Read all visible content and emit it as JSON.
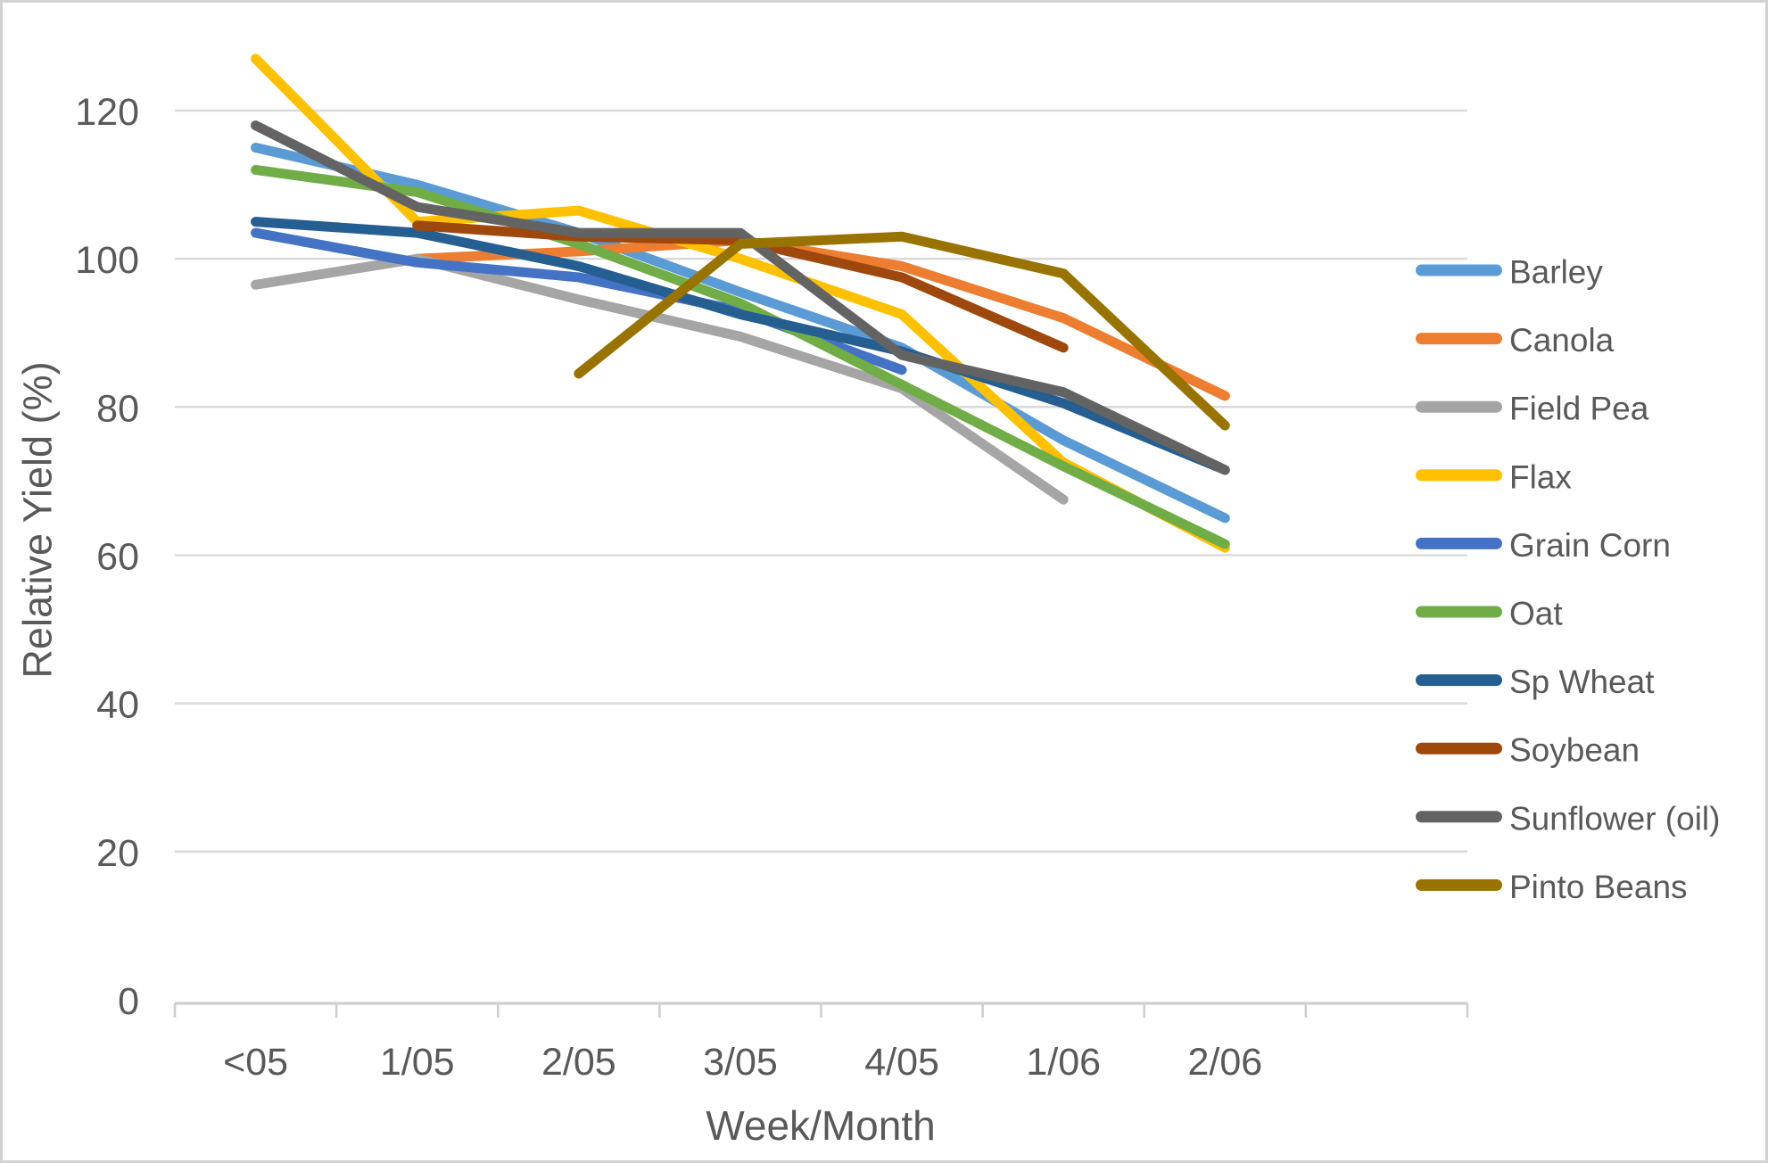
{
  "chart_data": {
    "type": "line",
    "title": "",
    "xlabel": "Week/Month",
    "ylabel": "Relative Yield (%)",
    "categories": [
      "<05",
      "1/05",
      "2/05",
      "3/05",
      "4/05",
      "1/06",
      "2/06"
    ],
    "series": [
      {
        "name": "Barley",
        "color": "#5B9BD5",
        "values": [
          115,
          110,
          103.5,
          95.5,
          88,
          75.5,
          65
        ]
      },
      {
        "name": "Canola",
        "color": "#ED7D31",
        "values": [
          null,
          100,
          101,
          102.5,
          99,
          92,
          81.5
        ]
      },
      {
        "name": "Field Pea",
        "color": "#A5A5A5",
        "values": [
          96.5,
          100,
          94.5,
          89.5,
          82.5,
          67.5,
          null
        ]
      },
      {
        "name": "Flax",
        "color": "#FFC000",
        "values": [
          127,
          105,
          106.5,
          100,
          92.5,
          72.5,
          61
        ]
      },
      {
        "name": "Grain Corn",
        "color": "#4472C4",
        "values": [
          103.5,
          99.5,
          97.5,
          93,
          85,
          null,
          null
        ]
      },
      {
        "name": "Oat",
        "color": "#70AD47",
        "values": [
          112,
          109,
          102,
          94,
          83,
          72,
          61.5
        ]
      },
      {
        "name": "Sp Wheat",
        "color": "#255E91",
        "values": [
          105,
          103.5,
          99,
          92.5,
          87.5,
          80.5,
          71.5
        ]
      },
      {
        "name": "Soybean",
        "color": "#9E480E",
        "values": [
          null,
          104.5,
          103,
          102.5,
          97.5,
          88,
          null
        ]
      },
      {
        "name": "Sunflower (oil)",
        "color": "#636363",
        "values": [
          118,
          107,
          103.5,
          103.5,
          87,
          82,
          71.5
        ]
      },
      {
        "name": "Pinto Beans",
        "color": "#997300",
        "values": [
          null,
          null,
          84.5,
          102,
          103,
          98,
          77.5
        ]
      }
    ],
    "y_axis": {
      "min": 0,
      "max": 120,
      "step": 20,
      "tick_labels": [
        "0",
        "20",
        "40",
        "60",
        "80",
        "100",
        "120"
      ]
    },
    "x_axis_tick_labels": [
      "<05",
      "1/05",
      "2/05",
      "3/05",
      "4/05",
      "1/06",
      "2/06"
    ],
    "grid": true,
    "legend_position": "right"
  },
  "styles": {
    "text_color": "#595959",
    "gridline_color": "#DBDBDB",
    "axis_line_color": "#CFCFCF",
    "background_color": "#FFFFFF",
    "frame_border_color": "#D2D2D2"
  }
}
